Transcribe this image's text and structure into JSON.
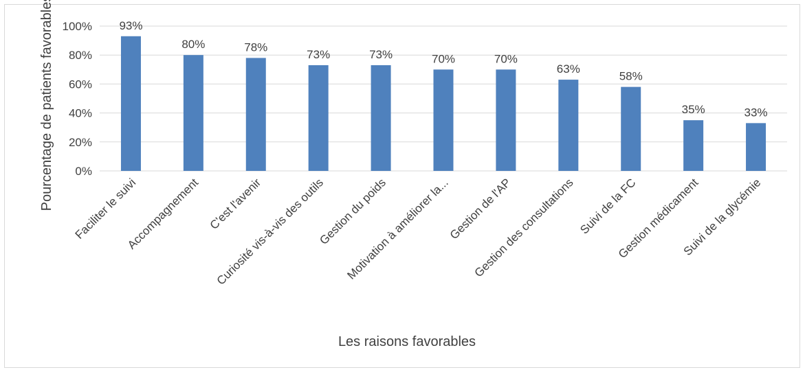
{
  "chart_data": {
    "type": "bar",
    "title": "",
    "xlabel": "Les raisons favorables",
    "ylabel": "Pourcentage de patients favorables",
    "categories": [
      "Faciliter le suivi",
      "Accompagnement",
      "C'est l'avenir",
      "Curiosité vis-à-vis des outils",
      "Gestion du poids",
      "Motivation à améliorer la...",
      "Gestion de l'AP",
      "Gestion des consultations",
      "Suivi de la FC",
      "Gestion médicament",
      "Suivi de la glycémie"
    ],
    "values": [
      93,
      80,
      78,
      73,
      73,
      70,
      70,
      63,
      58,
      35,
      33
    ],
    "value_labels": [
      "93%",
      "80%",
      "78%",
      "73%",
      "73%",
      "70%",
      "70%",
      "63%",
      "58%",
      "35%",
      "33%"
    ],
    "ylim": [
      0,
      100
    ],
    "y_ticks": [
      0,
      20,
      40,
      60,
      80,
      100
    ],
    "y_tick_labels": [
      "0%",
      "20%",
      "40%",
      "60%",
      "80%",
      "100%"
    ],
    "grid": true,
    "legend": "none",
    "bar_color": "#4f81bd",
    "grid_color": "#d9d9d9"
  }
}
